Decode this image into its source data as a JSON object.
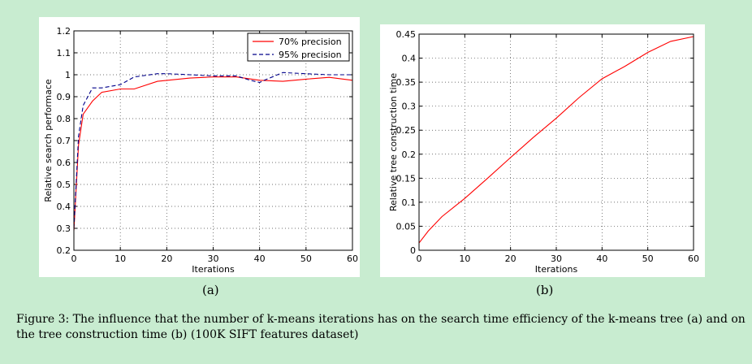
{
  "figure": {
    "caption": "Figure 3: The influence that the number of k-means iterations has on the search time efficiency of the k-means tree (a) and on the tree construction time (b) (100K SIFT features dataset)"
  },
  "chart_data": [
    {
      "id": "a",
      "panel_label": "(a)",
      "type": "line",
      "xlabel": "Iterations",
      "ylabel": "Relative search performace",
      "xlim": [
        0,
        60
      ],
      "ylim": [
        0.2,
        1.2
      ],
      "xticks": [
        0,
        10,
        20,
        30,
        40,
        50,
        60
      ],
      "yticks": [
        0.2,
        0.3,
        0.4,
        0.5,
        0.6,
        0.7,
        0.8,
        0.9,
        1,
        1.1,
        1.2
      ],
      "grid": true,
      "legend_position": "top-right",
      "series": [
        {
          "name": "70% precision",
          "color": "#ff0000",
          "style": "solid",
          "x": [
            0,
            1,
            2,
            4,
            6,
            10,
            13,
            18,
            25,
            30,
            35,
            40,
            45,
            50,
            55,
            60
          ],
          "y": [
            0.29,
            0.68,
            0.82,
            0.88,
            0.92,
            0.935,
            0.935,
            0.97,
            0.985,
            0.99,
            0.99,
            0.975,
            0.97,
            0.98,
            0.988,
            0.975
          ]
        },
        {
          "name": "95% precision",
          "color": "#00008b",
          "style": "dashed",
          "x": [
            0,
            1,
            2,
            4,
            6,
            10,
            13,
            18,
            20,
            25,
            30,
            35,
            38,
            40,
            41,
            45,
            50,
            55,
            60
          ],
          "y": [
            0.3,
            0.72,
            0.86,
            0.94,
            0.94,
            0.955,
            0.99,
            1.005,
            1.005,
            1.0,
            0.995,
            0.995,
            0.975,
            0.965,
            0.975,
            1.01,
            1.005,
            1.0,
            1.0
          ]
        }
      ]
    },
    {
      "id": "b",
      "panel_label": "(b)",
      "type": "line",
      "xlabel": "Iterations",
      "ylabel": "Relative tree construction time",
      "xlim": [
        0,
        60
      ],
      "ylim": [
        0,
        0.45
      ],
      "xticks": [
        0,
        10,
        20,
        30,
        40,
        50,
        60
      ],
      "yticks": [
        0,
        0.05,
        0.1,
        0.15,
        0.2,
        0.25,
        0.3,
        0.35,
        0.4,
        0.45
      ],
      "grid": true,
      "series": [
        {
          "color": "#ff0000",
          "style": "solid",
          "x": [
            0,
            2,
            5,
            10,
            15,
            20,
            25,
            30,
            35,
            40,
            45,
            50,
            55,
            60
          ],
          "y": [
            0.015,
            0.04,
            0.07,
            0.108,
            0.15,
            0.193,
            0.235,
            0.275,
            0.318,
            0.357,
            0.383,
            0.412,
            0.435,
            0.445
          ]
        }
      ]
    }
  ]
}
